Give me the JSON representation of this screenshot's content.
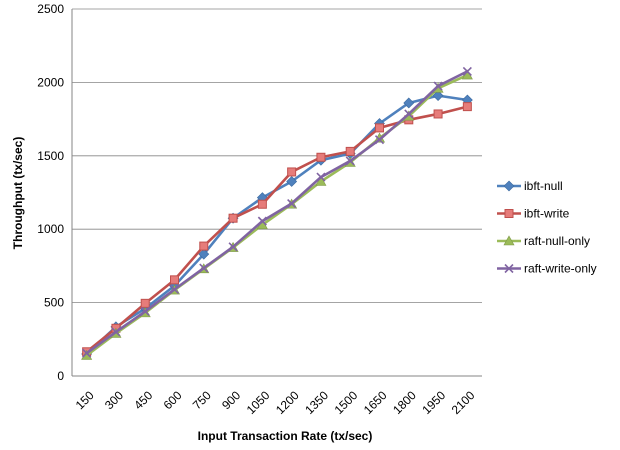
{
  "chart_data": {
    "type": "line",
    "title": "",
    "xlabel": "Input Transaction Rate (tx/sec)",
    "ylabel": "Throughput (tx/sec)",
    "categories": [
      "150",
      "300",
      "450",
      "600",
      "750",
      "900",
      "1050",
      "1200",
      "1350",
      "1500",
      "1650",
      "1800",
      "1950",
      "2100"
    ],
    "ylim": [
      0,
      2500
    ],
    "yticks": [
      "0",
      "500",
      "1000",
      "1500",
      "2000",
      "2500"
    ],
    "grid": "horizontal",
    "legend_position": "right",
    "series": [
      {
        "name": "ibft-null",
        "color": "#4f81bd",
        "marker": "diamond",
        "values": [
          150,
          335,
          460,
          615,
          830,
          1075,
          1215,
          1325,
          1470,
          1515,
          1720,
          1860,
          1910,
          1880
        ]
      },
      {
        "name": "ibft-write",
        "color": "#c0504d",
        "marker": "square",
        "values": [
          165,
          325,
          495,
          655,
          885,
          1075,
          1170,
          1390,
          1490,
          1530,
          1690,
          1745,
          1785,
          1835
        ]
      },
      {
        "name": "raft-null-only",
        "color": "#9bbb59",
        "marker": "triangle",
        "values": [
          140,
          290,
          430,
          585,
          730,
          875,
          1030,
          1170,
          1325,
          1455,
          1620,
          1770,
          1960,
          2050
        ]
      },
      {
        "name": "raft-write-only",
        "color": "#8064a2",
        "marker": "x",
        "values": [
          155,
          300,
          440,
          590,
          735,
          880,
          1055,
          1175,
          1355,
          1465,
          1610,
          1785,
          1975,
          2075
        ]
      }
    ]
  }
}
